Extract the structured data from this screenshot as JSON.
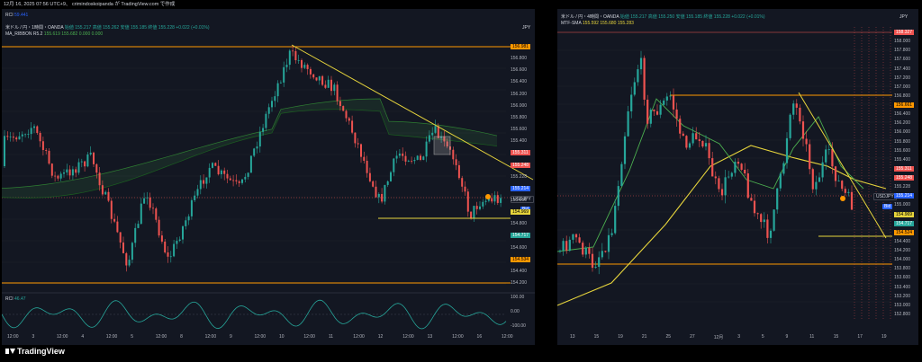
{
  "topbar": {
    "text": "12月 16, 2025 07:56 UTC+9、 crimindoskoipanda が TradingView.com で作成"
  },
  "brand": {
    "name": "TradingView"
  },
  "left": {
    "indicator_rci_top": "RCI",
    "indicator_rci_top_value": "59.441",
    "title": "米ドル / 円・1時間・OANDA",
    "ohlc": "始値 155.217  高値 155.262  安値 155.185  終値 155.228  +0.022 (+0.01%)",
    "ma_label": "MA_RIBBON R5.2",
    "ma_values": "155.619  155.682  0.000  0.000",
    "currency": "JPY",
    "price_labels": [
      "156.981",
      "156.800",
      "156.600",
      "156.400",
      "156.200",
      "156.000",
      "155.800",
      "155.600",
      "155.400",
      "155.311",
      "155.248",
      "155.228",
      "155.214",
      "155.000",
      "154.969",
      "154.800",
      "154.717",
      "154.600",
      "154.534",
      "154.400",
      "154.200"
    ],
    "symbol_tag": "USDJPY",
    "bid_tag": "Bid",
    "rci_label": "RCI",
    "rci_value": "46.47",
    "rci_axis": [
      "100.00",
      "0.00",
      "-100.00"
    ],
    "time_labels": [
      "12:00",
      "3",
      "12:00",
      "4",
      "12:00",
      "5",
      "12:00",
      "8",
      "12:00",
      "9",
      "12:00",
      "10",
      "12:00",
      "11",
      "12:00",
      "12",
      "12:00",
      "13",
      "12:00",
      "16",
      "12:00"
    ]
  },
  "right": {
    "title": "米ドル / 円・4時間・OANDA",
    "ohlc": "始値 155.217  高値 155.250  安値 155.185  終値 155.228  +0.022 (+0.01%)",
    "mtf_label": "MTF-SMA",
    "mtf_values": "155.592  155.680  155.283",
    "currency": "JPY",
    "price_labels": [
      "158.327",
      "158.000",
      "157.800",
      "157.600",
      "157.400",
      "157.200",
      "157.000",
      "156.800",
      "156.661",
      "156.400",
      "156.200",
      "156.000",
      "155.800",
      "155.600",
      "155.400",
      "155.311",
      "155.248",
      "155.228",
      "155.214",
      "155.000",
      "154.969",
      "154.717",
      "154.524",
      "154.400",
      "154.200",
      "154.000",
      "153.800",
      "153.600",
      "153.400",
      "153.200",
      "153.000",
      "152.800"
    ],
    "symbol_tag": "USDJPY",
    "bid_tag": "Bid",
    "time_labels": [
      "13",
      "15",
      "19",
      "21",
      "25",
      "27",
      "12月",
      "3",
      "5",
      "9",
      "11",
      "15",
      "17",
      "19"
    ]
  },
  "colors": {
    "up": "#26a69a",
    "down": "#ef5350",
    "orange": "#ff9800",
    "yellow": "#e6d43c",
    "green": "#4caf50"
  }
}
